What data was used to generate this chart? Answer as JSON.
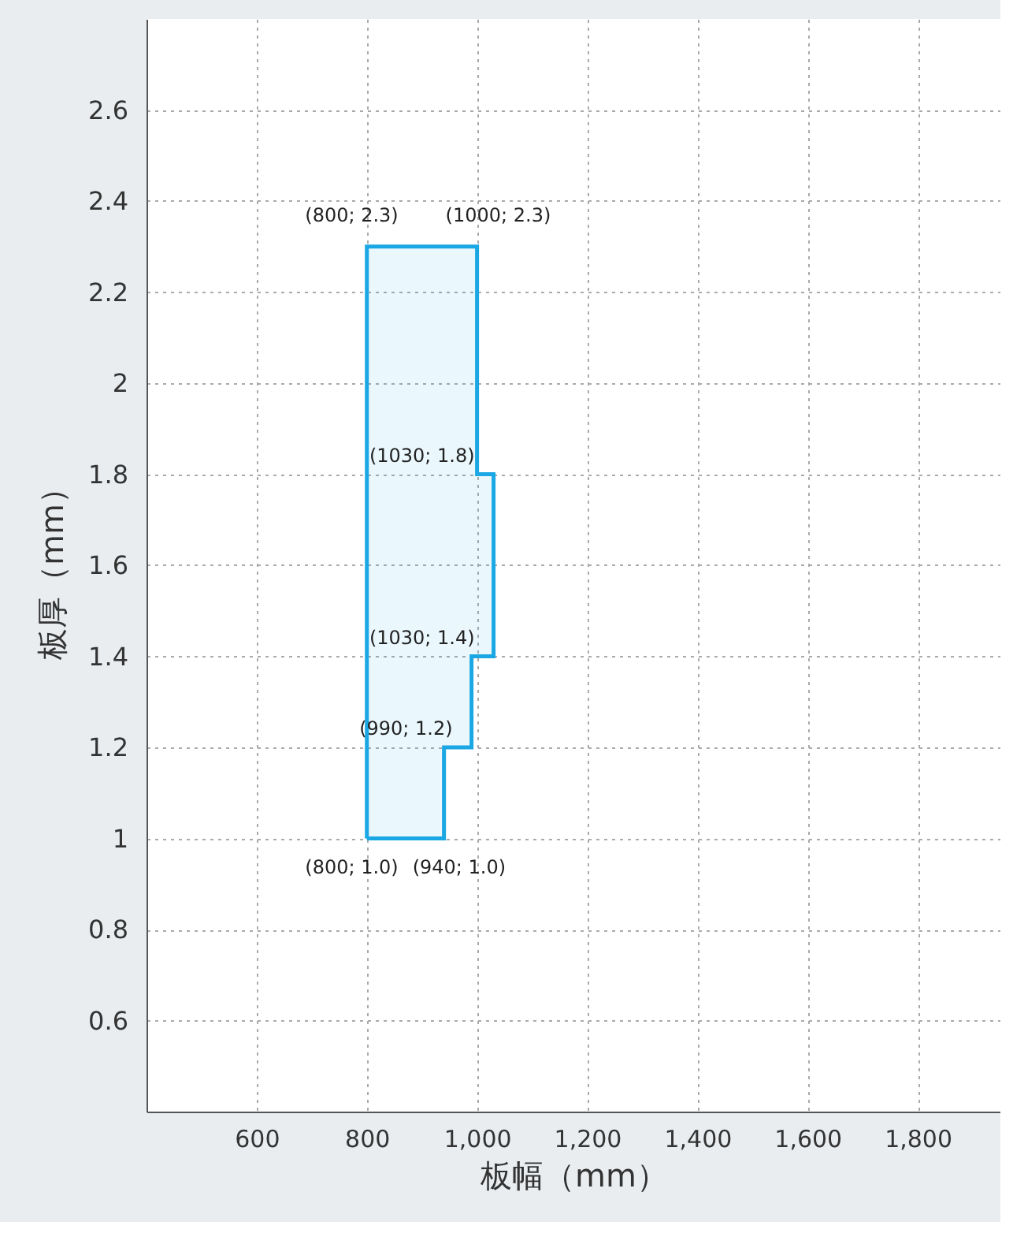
{
  "chart_data": {
    "type": "area",
    "xlabel": "板幅（mm）",
    "ylabel": "板厚（mm）",
    "series": [
      {
        "color": "#1aa7e4",
        "x": [
          800,
          940,
          940,
          990,
          990,
          1030,
          1030,
          1000,
          1000,
          800,
          800
        ],
        "values": [
          1.0,
          1.0,
          1.2,
          1.2,
          1.4,
          1.4,
          1.8,
          1.8,
          2.3,
          2.3,
          1.0
        ]
      }
    ],
    "xlim": [
      400,
      1950
    ],
    "xticks": [
      600,
      800,
      {
        "value": 1000,
        "label": "1,000"
      },
      {
        "value": 1200,
        "label": "1,200"
      },
      {
        "value": 1400,
        "label": "1,400"
      },
      {
        "value": 1600,
        "label": "1,600"
      },
      {
        "value": 1800,
        "label": "1,800"
      }
    ],
    "ylim": [
      0.4,
      2.8
    ],
    "yticks": [
      0.6,
      0.8,
      1,
      1.2,
      1.4,
      1.6,
      1.8,
      2,
      2.2,
      2.4,
      2.6
    ],
    "grid": true,
    "annotations": [
      {
        "text": "(800; 2.3)",
        "x": 800,
        "y": 2.3
      },
      {
        "text": "(1000; 2.3)",
        "x": 1000,
        "y": 2.3
      },
      {
        "text": "(1030; 1.8)",
        "x": 1030,
        "y": 1.8
      },
      {
        "text": "(1030; 1.4)",
        "x": 1030,
        "y": 1.4
      },
      {
        "text": "(990; 1.2)",
        "x": 990,
        "y": 1.2
      },
      {
        "text": "(800; 1.0)",
        "x": 800,
        "y": 1.0
      },
      {
        "text": "(940; 1.0)",
        "x": 940,
        "y": 1.0
      }
    ]
  }
}
